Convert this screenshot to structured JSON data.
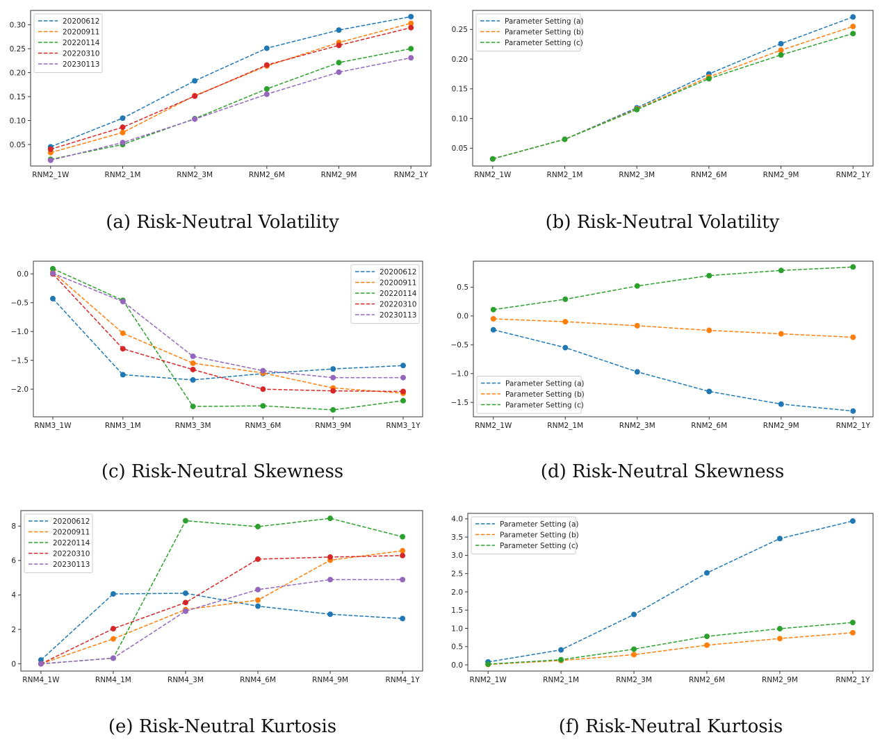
{
  "chart_data": [
    {
      "id": "a",
      "type": "line",
      "caption": "(a) Risk-Neutral Volatility",
      "categories": [
        "RNM2_1W",
        "RNM2_1M",
        "RNM2_3M",
        "RNM2_6M",
        "RNM2_9M",
        "RNM2_1Y"
      ],
      "ylim": [
        0.005,
        0.33
      ],
      "yticks": [
        0.05,
        0.1,
        0.15,
        0.2,
        0.25,
        0.3
      ],
      "ytick_labels": [
        "0.05",
        "0.10",
        "0.15",
        "0.20",
        "0.25",
        "0.30"
      ],
      "legend_position": "upper-left",
      "series": [
        {
          "name": "20200612",
          "color": "#1f77b4",
          "values": [
            0.045,
            0.105,
            0.183,
            0.251,
            0.289,
            0.317
          ]
        },
        {
          "name": "20200911",
          "color": "#ff7f0e",
          "values": [
            0.033,
            0.075,
            0.152,
            0.214,
            0.263,
            0.303
          ]
        },
        {
          "name": "20220114",
          "color": "#2ca02c",
          "values": [
            0.019,
            0.05,
            0.104,
            0.166,
            0.221,
            0.25
          ]
        },
        {
          "name": "20220310",
          "color": "#d62728",
          "values": [
            0.04,
            0.086,
            0.151,
            0.216,
            0.257,
            0.294
          ]
        },
        {
          "name": "20230113",
          "color": "#9467bd",
          "values": [
            0.017,
            0.054,
            0.103,
            0.155,
            0.201,
            0.231
          ]
        }
      ]
    },
    {
      "id": "b",
      "type": "line",
      "caption": "(b) Risk-Neutral Volatility",
      "categories": [
        "RNM2_1W",
        "RNM2_1M",
        "RNM2_3M",
        "RNM2_6M",
        "RNM2_9M",
        "RNM2_1Y"
      ],
      "ylim": [
        0.02,
        0.282
      ],
      "yticks": [
        0.05,
        0.1,
        0.15,
        0.2,
        0.25
      ],
      "ytick_labels": [
        "0.05",
        "0.10",
        "0.15",
        "0.20",
        "0.25"
      ],
      "legend_position": "upper-left",
      "series": [
        {
          "name": "Parameter Setting (a)",
          "color": "#1f77b4",
          "values": [
            0.032,
            0.065,
            0.118,
            0.175,
            0.226,
            0.271
          ]
        },
        {
          "name": "Parameter Setting (b)",
          "color": "#ff7f0e",
          "values": [
            0.032,
            0.065,
            0.116,
            0.17,
            0.215,
            0.255
          ]
        },
        {
          "name": "Parameter Setting (c)",
          "color": "#2ca02c",
          "values": [
            0.032,
            0.065,
            0.115,
            0.167,
            0.207,
            0.243
          ]
        }
      ]
    },
    {
      "id": "c",
      "type": "line",
      "caption": "(c) Risk-Neutral Skewness",
      "categories": [
        "RNM3_1W",
        "RNM3_1M",
        "RNM3_3M",
        "RNM3_6M",
        "RNM3_9M",
        "RNM3_1Y"
      ],
      "ylim": [
        -2.48,
        0.22
      ],
      "yticks": [
        -2.0,
        -1.5,
        -1.0,
        -0.5,
        0.0
      ],
      "ytick_labels": [
        "−2.0",
        "−1.5",
        "−1.0",
        "−0.5",
        "0.0"
      ],
      "legend_position": "upper-right",
      "series": [
        {
          "name": "20200612",
          "color": "#1f77b4",
          "values": [
            -0.43,
            -1.75,
            -1.84,
            -1.73,
            -1.65,
            -1.59
          ]
        },
        {
          "name": "20200911",
          "color": "#ff7f0e",
          "values": [
            0.03,
            -1.03,
            -1.55,
            -1.72,
            -1.98,
            -2.07
          ]
        },
        {
          "name": "20220114",
          "color": "#2ca02c",
          "values": [
            0.09,
            -0.46,
            -2.3,
            -2.29,
            -2.36,
            -2.2
          ]
        },
        {
          "name": "20220310",
          "color": "#d62728",
          "values": [
            0.0,
            -1.3,
            -1.66,
            -2.0,
            -2.03,
            -2.04
          ]
        },
        {
          "name": "20230113",
          "color": "#9467bd",
          "values": [
            0.01,
            -0.48,
            -1.43,
            -1.68,
            -1.8,
            -1.8
          ]
        }
      ]
    },
    {
      "id": "d",
      "type": "line",
      "caption": "(d) Risk-Neutral Skewness",
      "categories": [
        "RNM2_1W",
        "RNM2_1M",
        "RNM2_3M",
        "RNM2_6M",
        "RNM2_9M",
        "RNM2_1Y"
      ],
      "ylim": [
        -1.75,
        0.95
      ],
      "yticks": [
        -1.5,
        -1.0,
        -0.5,
        0.0,
        0.5
      ],
      "ytick_labels": [
        "−1.5",
        "−1.0",
        "−0.5",
        "0.0",
        "0.5"
      ],
      "legend_position": "lower-left",
      "series": [
        {
          "name": "Parameter Setting (a)",
          "color": "#1f77b4",
          "values": [
            -0.24,
            -0.55,
            -0.97,
            -1.31,
            -1.53,
            -1.65
          ]
        },
        {
          "name": "Parameter Setting (b)",
          "color": "#ff7f0e",
          "values": [
            -0.05,
            -0.1,
            -0.17,
            -0.25,
            -0.31,
            -0.37
          ]
        },
        {
          "name": "Parameter Setting (c)",
          "color": "#2ca02c",
          "values": [
            0.11,
            0.29,
            0.52,
            0.7,
            0.79,
            0.85
          ]
        }
      ]
    },
    {
      "id": "e",
      "type": "line",
      "caption": "(e) Risk-Neutral Kurtosis",
      "categories": [
        "RNM4_1W",
        "RNM4_1M",
        "RNM4_3M",
        "RNM4_6M",
        "RNM4_9M",
        "RNM4_1Y"
      ],
      "ylim": [
        -0.42,
        8.9
      ],
      "yticks": [
        0,
        2,
        4,
        6,
        8
      ],
      "ytick_labels": [
        "0",
        "2",
        "4",
        "6",
        "8"
      ],
      "legend_position": "upper-left",
      "series": [
        {
          "name": "20200612",
          "color": "#1f77b4",
          "values": [
            0.22,
            4.06,
            4.1,
            3.35,
            2.88,
            2.63
          ]
        },
        {
          "name": "20200911",
          "color": "#ff7f0e",
          "values": [
            0.0,
            1.45,
            3.15,
            3.7,
            6.02,
            6.57
          ]
        },
        {
          "name": "20220114",
          "color": "#2ca02c",
          "values": [
            0.0,
            0.33,
            8.31,
            7.97,
            8.45,
            7.38
          ]
        },
        {
          "name": "20220310",
          "color": "#d62728",
          "values": [
            0.0,
            2.04,
            3.56,
            6.08,
            6.2,
            6.29
          ]
        },
        {
          "name": "20230113",
          "color": "#9467bd",
          "values": [
            0.0,
            0.33,
            3.06,
            4.31,
            4.89,
            4.89
          ]
        }
      ]
    },
    {
      "id": "f",
      "type": "line",
      "caption": "(f) Risk-Neutral Kurtosis",
      "categories": [
        "RNM2_1W",
        "RNM2_1M",
        "RNM2_3M",
        "RNM2_6M",
        "RNM2_9M",
        "RNM2_1Y"
      ],
      "ylim": [
        -0.17,
        4.15
      ],
      "yticks": [
        0.0,
        0.5,
        1.0,
        1.5,
        2.0,
        2.5,
        3.0,
        3.5,
        4.0
      ],
      "ytick_labels": [
        "0.0",
        "0.5",
        "1.0",
        "1.5",
        "2.0",
        "2.5",
        "3.0",
        "3.5",
        "4.0"
      ],
      "legend_position": "upper-left",
      "series": [
        {
          "name": "Parameter Setting (a)",
          "color": "#1f77b4",
          "values": [
            0.08,
            0.41,
            1.38,
            2.52,
            3.46,
            3.94
          ]
        },
        {
          "name": "Parameter Setting (b)",
          "color": "#ff7f0e",
          "values": [
            0.01,
            0.12,
            0.28,
            0.54,
            0.72,
            0.88
          ]
        },
        {
          "name": "Parameter Setting (c)",
          "color": "#2ca02c",
          "values": [
            0.02,
            0.14,
            0.43,
            0.78,
            0.99,
            1.16
          ]
        }
      ]
    }
  ]
}
